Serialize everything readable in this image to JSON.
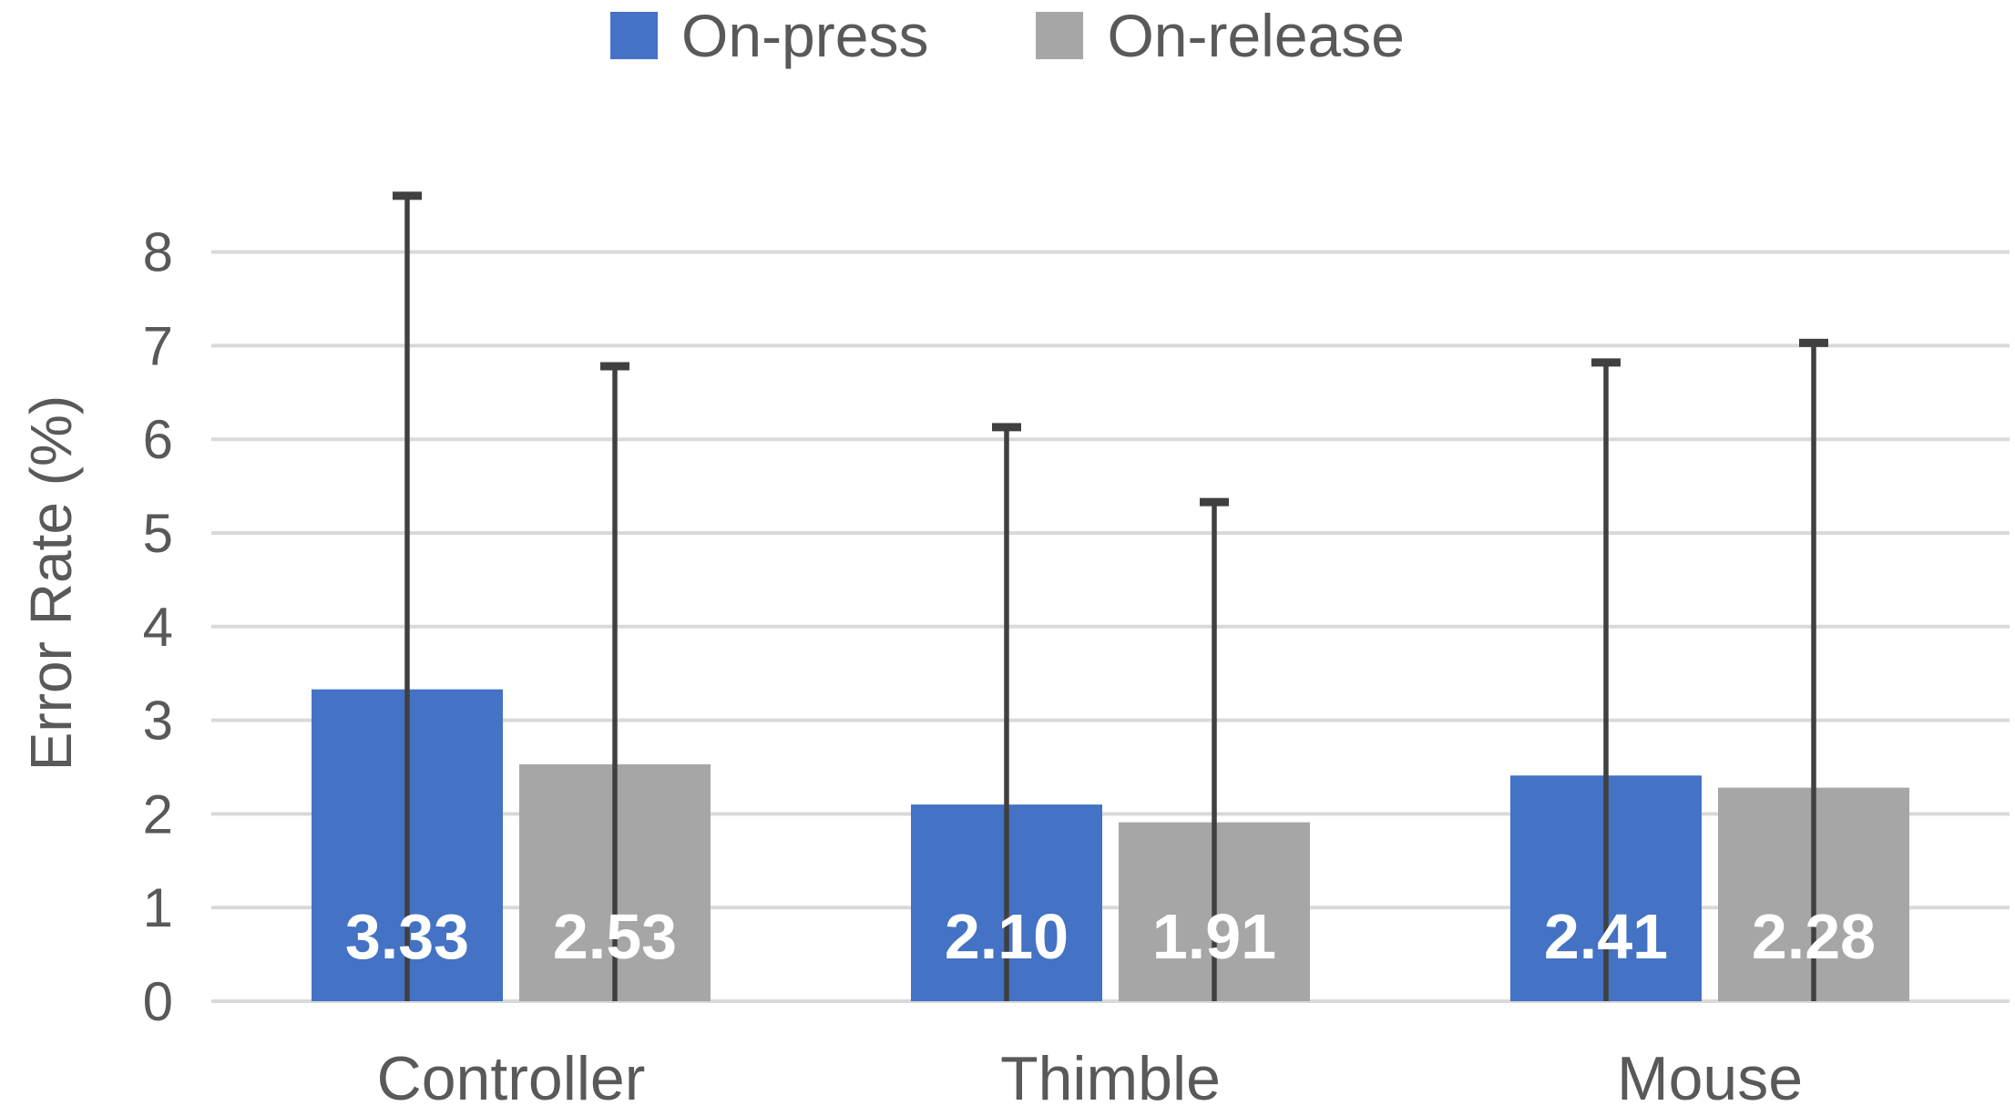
{
  "chart_data": {
    "type": "bar",
    "title": "",
    "categories": [
      "Controller",
      "Thimble",
      "Mouse"
    ],
    "series": [
      {
        "name": "On-press",
        "color": "#4472C4",
        "values": [
          3.33,
          2.1,
          2.41
        ],
        "value_labels": [
          "3.33",
          "2.10",
          "2.41"
        ],
        "error_top": [
          8.6,
          6.13,
          6.82
        ]
      },
      {
        "name": "On-release",
        "color": "#A6A6A6",
        "values": [
          2.53,
          1.91,
          2.28
        ],
        "value_labels": [
          "2.53",
          "1.91",
          "2.28"
        ],
        "error_top": [
          6.78,
          5.33,
          7.03
        ]
      }
    ],
    "xlabel": "",
    "ylabel": "Error Rate (%)",
    "yticks": [
      "0",
      "1",
      "2",
      "3",
      "4",
      "5",
      "6",
      "7",
      "8"
    ],
    "ylim": [
      0,
      8.8
    ],
    "grid": true,
    "legend_position": "top-center",
    "error_bar_note": "upper whiskers with end caps; lower whiskers clipped at y=0",
    "colors": {
      "gridline": "#D9D9D9",
      "error_bar": "#404040",
      "axis_text": "#595959",
      "value_label_text": "#FFFFFF",
      "background": "#FFFFFF"
    }
  }
}
